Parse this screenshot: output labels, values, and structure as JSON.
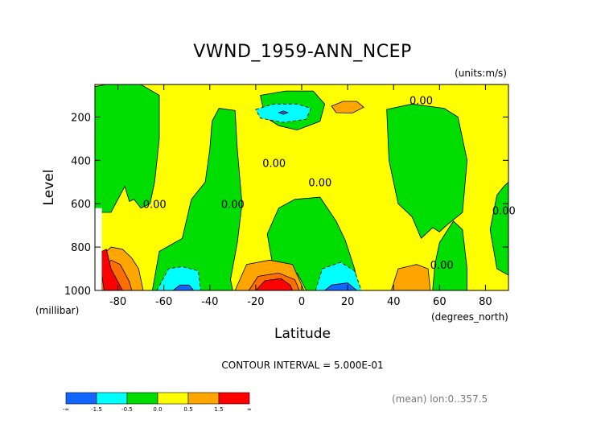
{
  "chart_data": {
    "type": "heatmap",
    "title": "VWND_1959-ANN_NCEP",
    "units_label": "(units:m/s)",
    "xlabel": "Latitude",
    "ylabel": "Level",
    "x_unit_label": "(degrees_north)",
    "y_unit_label": "(millibar)",
    "xlim": [
      -90,
      90
    ],
    "ylim": [
      1000,
      50
    ],
    "x_ticks": [
      "-80",
      "-60",
      "-40",
      "-20",
      "0",
      "20",
      "40",
      "60",
      "80"
    ],
    "x_tick_values": [
      -80,
      -60,
      -40,
      -20,
      0,
      20,
      40,
      60,
      80
    ],
    "y_ticks": [
      "200",
      "400",
      "600",
      "800",
      "1000"
    ],
    "y_tick_values": [
      200,
      400,
      600,
      800,
      1000
    ],
    "contour_interval_label": "CONTOUR INTERVAL = 5.000E-01",
    "contour_labels": [
      {
        "text": "0.00",
        "lat": 52,
        "lev": 140
      },
      {
        "text": "0.00",
        "lat": -12,
        "lev": 430
      },
      {
        "text": "0.00",
        "lat": 8,
        "lev": 520
      },
      {
        "text": "0.00",
        "lat": -64,
        "lev": 620
      },
      {
        "text": "0.00",
        "lat": -30,
        "lev": 620
      },
      {
        "text": "0.00",
        "lat": 88,
        "lev": 650
      },
      {
        "text": "0.00",
        "lat": 61,
        "lev": 900
      }
    ],
    "regions": [
      {
        "value_range": "0.0 to 0.5",
        "fill": "yellow",
        "polygon": [
          [
            -90,
            50
          ],
          [
            90,
            50
          ],
          [
            90,
            1000
          ],
          [
            -90,
            1000
          ]
        ]
      },
      {
        "value_range": "-0.5 to 0.0",
        "fill": "green",
        "polygon": [
          [
            -90,
            60
          ],
          [
            -85,
            50
          ],
          [
            -70,
            50
          ],
          [
            -62,
            100
          ],
          [
            -62,
            300
          ],
          [
            -64,
            500
          ],
          [
            -66,
            600
          ],
          [
            -70,
            620
          ],
          [
            -73,
            580
          ],
          [
            -75,
            590
          ],
          [
            -77,
            520
          ],
          [
            -83,
            640
          ],
          [
            -90,
            640
          ]
        ]
      },
      {
        "value_range": "-0.5 to 0.0",
        "fill": "green",
        "polygon": [
          [
            -65,
            1000
          ],
          [
            -62,
            820
          ],
          [
            -57,
            790
          ],
          [
            -52,
            760
          ],
          [
            -48,
            580
          ],
          [
            -42,
            500
          ],
          [
            -40,
            350
          ],
          [
            -39,
            220
          ],
          [
            -36,
            160
          ],
          [
            -29,
            170
          ],
          [
            -28,
            350
          ],
          [
            -26,
            600
          ],
          [
            -28,
            780
          ],
          [
            -31,
            950
          ],
          [
            -30,
            1000
          ]
        ]
      },
      {
        "value_range": "-0.5 to 0.0",
        "fill": "green",
        "polygon": [
          [
            -18,
            100
          ],
          [
            -7,
            80
          ],
          [
            5,
            80
          ],
          [
            10,
            140
          ],
          [
            8,
            220
          ],
          [
            -2,
            260
          ],
          [
            -10,
            240
          ],
          [
            -16,
            200
          ]
        ]
      },
      {
        "value_range": "-0.5 to 0.0",
        "fill": "green",
        "polygon": [
          [
            -15,
            740
          ],
          [
            -10,
            620
          ],
          [
            -3,
            580
          ],
          [
            8,
            570
          ],
          [
            15,
            680
          ],
          [
            19,
            770
          ],
          [
            23,
            900
          ],
          [
            25,
            1000
          ],
          [
            2,
            1000
          ],
          [
            -2,
            920
          ],
          [
            -12,
            920
          ]
        ]
      },
      {
        "value_range": "-0.5 to 0.0",
        "fill": "green",
        "polygon": [
          [
            37,
            165
          ],
          [
            48,
            140
          ],
          [
            62,
            160
          ],
          [
            68,
            200
          ],
          [
            72,
            400
          ],
          [
            70,
            640
          ],
          [
            63,
            700
          ],
          [
            60,
            730
          ],
          [
            57,
            710
          ],
          [
            52,
            760
          ],
          [
            48,
            660
          ],
          [
            42,
            600
          ],
          [
            38,
            400
          ]
        ]
      },
      {
        "value_range": "-0.5 to 0.0",
        "fill": "green",
        "polygon": [
          [
            57,
            1000
          ],
          [
            58,
            880
          ],
          [
            60,
            780
          ],
          [
            66,
            680
          ],
          [
            70,
            720
          ],
          [
            72,
            900
          ],
          [
            72,
            1000
          ]
        ]
      },
      {
        "value_range": "-0.5 to 0.0",
        "fill": "green",
        "polygon": [
          [
            82,
            720
          ],
          [
            85,
            560
          ],
          [
            88,
            520
          ],
          [
            90,
            500
          ],
          [
            90,
            930
          ],
          [
            85,
            900
          ]
        ]
      },
      {
        "value_range": "-1.0 to -0.5",
        "fill": "cyan",
        "polygon": [
          [
            -20,
            165
          ],
          [
            -12,
            140
          ],
          [
            -2,
            140
          ],
          [
            4,
            160
          ],
          [
            2,
            210
          ],
          [
            -8,
            225
          ],
          [
            -18,
            205
          ]
        ]
      },
      {
        "value_range": "-1.0 to -0.5",
        "fill": "cyan",
        "polygon": [
          [
            -63,
            1000
          ],
          [
            -58,
            900
          ],
          [
            -52,
            890
          ],
          [
            -45,
            910
          ],
          [
            -44,
            1000
          ]
        ]
      },
      {
        "value_range": "-1.0 to -0.5",
        "fill": "cyan",
        "polygon": [
          [
            6,
            1000
          ],
          [
            9,
            900
          ],
          [
            17,
            870
          ],
          [
            23,
            910
          ],
          [
            26,
            1000
          ]
        ]
      },
      {
        "value_range": "-1.5 to -1.0",
        "fill": "blue",
        "polygon": [
          [
            -56,
            1000
          ],
          [
            -53,
            975
          ],
          [
            -49,
            975
          ],
          [
            -47,
            1000
          ]
        ]
      },
      {
        "value_range": "-1.5 to -1.0",
        "fill": "blue",
        "polygon": [
          [
            10,
            1000
          ],
          [
            13,
            975
          ],
          [
            20,
            965
          ],
          [
            24,
            1000
          ]
        ]
      },
      {
        "value_range": "-1.5 to -1.0",
        "fill": "blue",
        "polygon": [
          [
            -10,
            180
          ],
          [
            -8,
            172
          ],
          [
            -6,
            180
          ],
          [
            -8,
            188
          ]
        ]
      },
      {
        "value_range": "0.5 to 1.0",
        "fill": "orange",
        "polygon": [
          [
            13,
            150
          ],
          [
            18,
            128
          ],
          [
            24,
            128
          ],
          [
            27,
            155
          ],
          [
            22,
            182
          ],
          [
            15,
            180
          ]
        ]
      },
      {
        "value_range": "0.5 to 1.0",
        "fill": "orange",
        "polygon": [
          [
            -29,
            1000
          ],
          [
            -24,
            880
          ],
          [
            -14,
            860
          ],
          [
            -4,
            880
          ],
          [
            1,
            1000
          ]
        ]
      },
      {
        "value_range": "0.5 to 1.0",
        "fill": "orange",
        "polygon": [
          [
            39,
            1000
          ],
          [
            42,
            900
          ],
          [
            50,
            880
          ],
          [
            55,
            900
          ],
          [
            56,
            1000
          ]
        ]
      },
      {
        "value_range": "0.5 to 1.0",
        "fill": "orange",
        "polygon": [
          [
            -86,
            1000
          ],
          [
            -87,
            880
          ],
          [
            -85,
            820
          ],
          [
            -83,
            800
          ],
          [
            -78,
            810
          ],
          [
            -74,
            850
          ],
          [
            -71,
            900
          ],
          [
            -69,
            1000
          ]
        ]
      },
      {
        "value_range": "1.0 to 1.5",
        "fill": "orange_red",
        "polygon": [
          [
            -23,
            1000
          ],
          [
            -19,
            935
          ],
          [
            -10,
            920
          ],
          [
            -3,
            950
          ],
          [
            -1,
            1000
          ]
        ]
      },
      {
        "value_range": "1.0 to 1.5",
        "fill": "orange_red",
        "polygon": [
          [
            -87,
            1000
          ],
          [
            -87,
            900
          ],
          [
            -83,
            860
          ],
          [
            -79,
            880
          ],
          [
            -75,
            960
          ],
          [
            -74,
            1000
          ]
        ]
      },
      {
        "value_range": "1.5 to inf",
        "fill": "red",
        "polygon": [
          [
            -20,
            1000
          ],
          [
            -16,
            955
          ],
          [
            -9,
            945
          ],
          [
            -5,
            975
          ],
          [
            -4,
            1000
          ]
        ]
      },
      {
        "value_range": "1.5 to inf",
        "fill": "red",
        "polygon": [
          [
            -86,
            1000
          ],
          [
            -87,
            930
          ],
          [
            -87,
            820
          ],
          [
            -85,
            810
          ],
          [
            -83,
            900
          ],
          [
            -80,
            960
          ],
          [
            -78,
            1000
          ]
        ]
      },
      {
        "value_range": "missing",
        "fill": "white",
        "polygon": [
          [
            -90,
            620
          ],
          [
            -87,
            620
          ],
          [
            -87,
            1000
          ],
          [
            -90,
            1000
          ]
        ]
      }
    ],
    "colorbar": {
      "labels": [
        "-∞",
        "-1.5",
        "-0.5",
        "0.0",
        "0.5",
        "1.5",
        "∞"
      ],
      "colors": [
        "blue",
        "cyan",
        "green",
        "yellow",
        "orange",
        "red"
      ]
    },
    "footer_note": "(mean) lon:0..357.5"
  },
  "colors": {
    "blue": "#1166ff",
    "cyan": "#00ffff",
    "green": "#00dd00",
    "yellow": "#ffff00",
    "orange": "#ffa500",
    "orange_red": "#ff6e00",
    "red": "#ff0000",
    "white": "#ffffff",
    "line": "#000000"
  }
}
